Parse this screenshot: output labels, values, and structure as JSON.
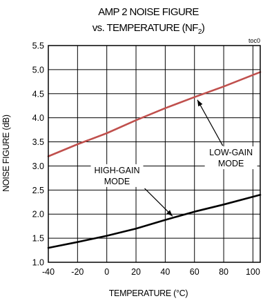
{
  "chart_data": {
    "type": "line",
    "title_line1": "AMP 2 NOISE FIGURE",
    "title_line2_prefix": "vs. TEMPERATURE (NF",
    "title_line2_subscript": "2",
    "title_line2_suffix": ")",
    "figure_code": "toc0",
    "xlabel": "TEMPERATURE (°C)",
    "ylabel": "NOISE FIGURE (dB)",
    "xlim": [
      -40,
      105
    ],
    "ylim": [
      1.0,
      5.5
    ],
    "xticks": [
      -40,
      -20,
      0,
      20,
      40,
      60,
      80,
      100
    ],
    "xtick_labels": [
      "-40",
      "-20",
      "0",
      "20",
      "40",
      "60",
      "80",
      "100"
    ],
    "yticks": [
      1.0,
      1.5,
      2.0,
      2.5,
      3.0,
      3.5,
      4.0,
      4.5,
      5.0,
      5.5
    ],
    "ytick_labels": [
      "1.0",
      "1.5",
      "2.0",
      "2.5",
      "3.0",
      "3.5",
      "4.0",
      "4.5",
      "5.0",
      "5.5"
    ],
    "grid": true,
    "series": [
      {
        "key": "low-gain",
        "color": "#c0504d",
        "x": [
          -40,
          -20,
          0,
          20,
          40,
          60,
          80,
          105
        ],
        "y": [
          3.2,
          3.45,
          3.68,
          3.95,
          4.2,
          4.43,
          4.65,
          4.95
        ]
      },
      {
        "key": "high-gain",
        "color": "#000000",
        "x": [
          -40,
          -20,
          0,
          20,
          40,
          60,
          80,
          105
        ],
        "y": [
          1.3,
          1.42,
          1.55,
          1.7,
          1.88,
          2.05,
          2.2,
          2.4
        ]
      }
    ],
    "annotations": {
      "low_gain": {
        "line1": "LOW-GAIN",
        "line2": "MODE",
        "x": 85,
        "y": 3.22
      },
      "high_gain": {
        "line1": "HIGH-GAIN",
        "line2": "MODE",
        "x": 7,
        "y": 2.85
      }
    }
  }
}
